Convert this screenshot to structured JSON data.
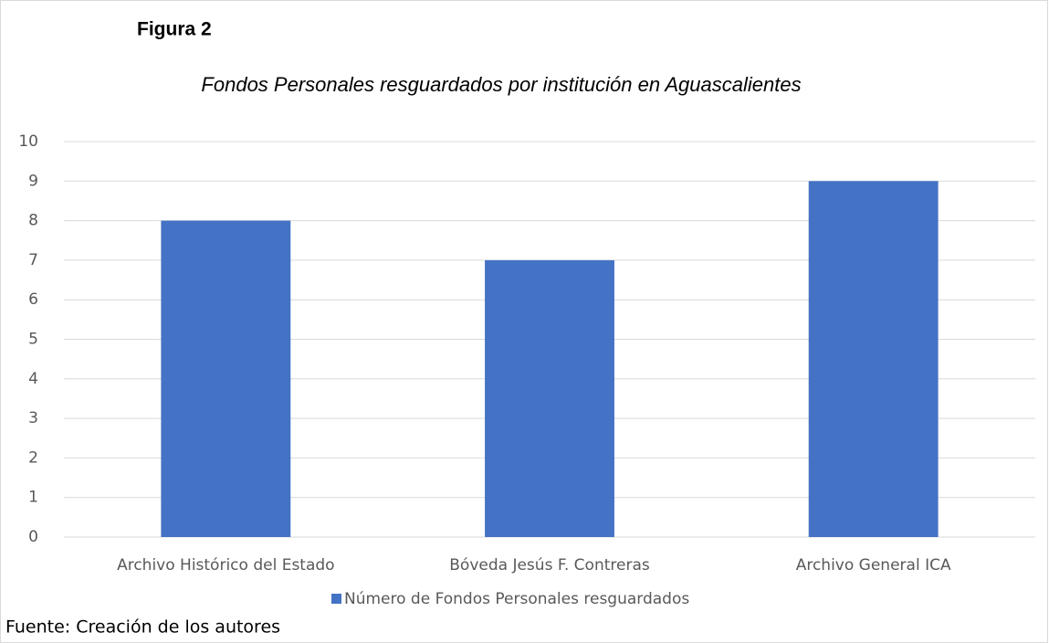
{
  "chart_data": {
    "type": "bar",
    "figure_label": "Figura 2",
    "title": "Fondos Personales resguardados por institución en Aguascalientes",
    "categories": [
      "Archivo Histórico del Estado",
      "Bóveda Jesús F. Contreras",
      "Archivo General ICA"
    ],
    "series": [
      {
        "name": "Número de Fondos Personales resguardados",
        "color": "#4472c4",
        "values": [
          8,
          7,
          9
        ]
      }
    ],
    "ylim": [
      0,
      10
    ],
    "yticks": [
      0,
      1,
      2,
      3,
      4,
      5,
      6,
      7,
      8,
      9,
      10
    ],
    "grid": true,
    "legend": "bottom",
    "source": "Fuente: Creación de los autores"
  }
}
